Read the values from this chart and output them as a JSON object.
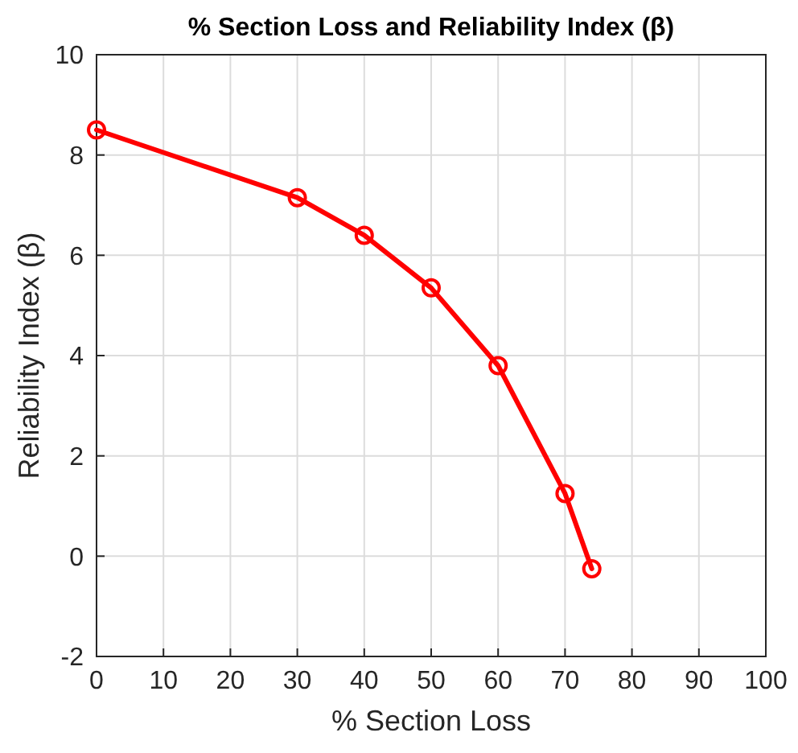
{
  "chart_data": {
    "type": "line",
    "title": "% Section Loss and Reliability Index (β)",
    "xlabel": "% Section Loss",
    "ylabel": "Reliability Index (β)",
    "x": [
      0,
      30,
      40,
      50,
      60,
      70,
      74
    ],
    "series": [
      {
        "color": "#ff0000",
        "values": [
          8.5,
          7.15,
          6.4,
          5.35,
          3.8,
          1.25,
          -0.25
        ]
      }
    ],
    "xlim": [
      0,
      100
    ],
    "xticks": [
      0,
      10,
      20,
      30,
      40,
      50,
      60,
      70,
      80,
      90,
      100
    ],
    "ylim": [
      -2,
      10
    ],
    "yticks": [
      -2,
      0,
      2,
      4,
      6,
      8,
      10
    ],
    "grid": true,
    "marker": "circle",
    "line_style": "solid"
  }
}
